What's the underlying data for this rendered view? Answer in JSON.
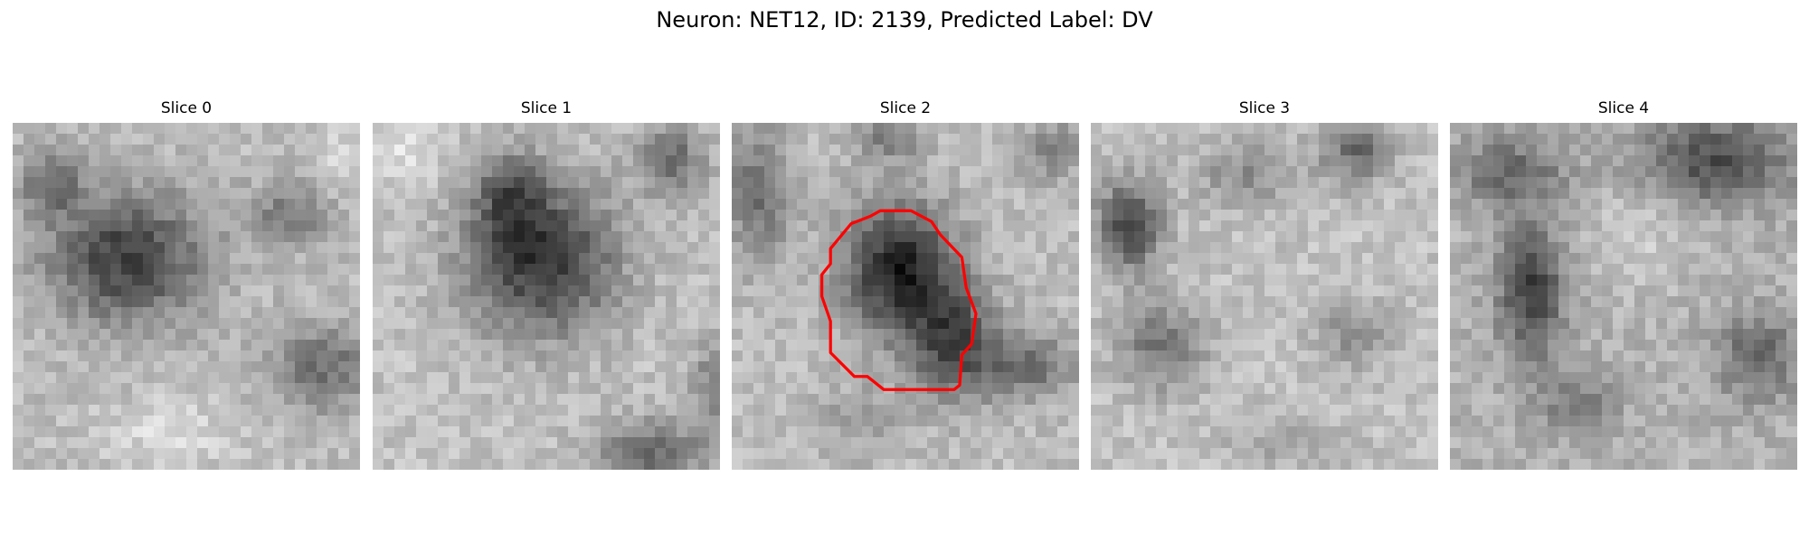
{
  "figure": {
    "title": "Neuron: NET12, ID: 2139, Predicted Label: DV"
  },
  "panels": [
    {
      "title": "Slice 0"
    },
    {
      "title": "Slice 1"
    },
    {
      "title": "Slice 2",
      "has_contour": true,
      "contour_color": "#ff0000"
    },
    {
      "title": "Slice 3"
    },
    {
      "title": "Slice 4"
    }
  ],
  "image_grid": {
    "resolution": 32,
    "colormap": "gray"
  }
}
